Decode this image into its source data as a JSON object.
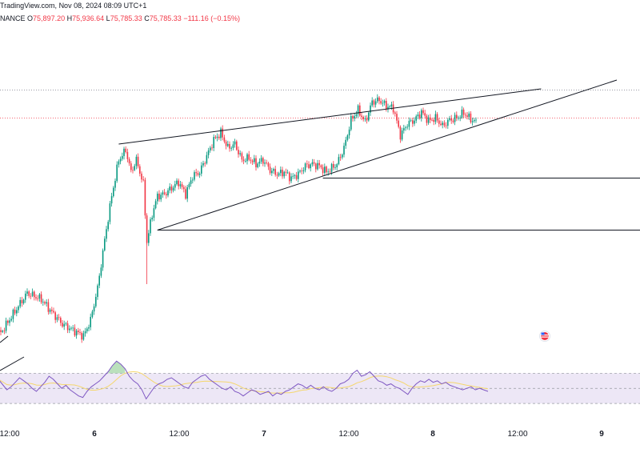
{
  "header": {
    "source": "TradingView.com,",
    "datetime": "Nov 08, 2024 08:09 UTC+1"
  },
  "ohlc": {
    "symbol": "NANCE",
    "open_label": "O",
    "open": "75,897.20",
    "high_label": "H",
    "high": "75,936.64",
    "low_label": "L",
    "low": "75,785.33",
    "close_label": "C",
    "close": "75,785.33",
    "change": "−111.16 (−0.15%)"
  },
  "colors": {
    "up": "#089981",
    "down": "#f23645",
    "line": "#131722",
    "rsi": "#7e57c2",
    "rsi_ma": "#f5d76e",
    "rsi_band": "#ede7f6"
  },
  "chart_data": {
    "type": "candlestick",
    "x_labels": [
      "12:00",
      "6",
      "12:00",
      "7",
      "12:00",
      "8",
      "12:00",
      "9"
    ],
    "bold_labels": [
      "6",
      "7",
      "8",
      "9"
    ],
    "price_start": 70020,
    "price_path": [
      [
        0,
        70020
      ],
      [
        5,
        69980
      ],
      [
        12,
        70450
      ],
      [
        20,
        70980
      ],
      [
        28,
        70820
      ],
      [
        34,
        70500
      ],
      [
        40,
        70200
      ],
      [
        46,
        70050
      ],
      [
        52,
        69900
      ],
      [
        56,
        70300
      ],
      [
        60,
        71100
      ],
      [
        64,
        72300
      ],
      [
        68,
        73400
      ],
      [
        72,
        74300
      ],
      [
        76,
        74550
      ],
      [
        79,
        74000
      ],
      [
        82,
        74300
      ],
      [
        86,
        73700
      ],
      [
        88,
        72250
      ],
      [
        91,
        72950
      ],
      [
        94,
        73400
      ],
      [
        98,
        73450
      ],
      [
        102,
        73600
      ],
      [
        106,
        73750
      ],
      [
        110,
        73450
      ],
      [
        114,
        73900
      ],
      [
        118,
        74000
      ],
      [
        122,
        74400
      ],
      [
        126,
        74800
      ],
      [
        130,
        74980
      ],
      [
        134,
        74600
      ],
      [
        138,
        74700
      ],
      [
        142,
        74300
      ],
      [
        146,
        74350
      ],
      [
        150,
        74200
      ],
      [
        154,
        74300
      ],
      [
        158,
        74050
      ],
      [
        162,
        73950
      ],
      [
        166,
        74000
      ],
      [
        170,
        73850
      ],
      [
        174,
        73950
      ],
      [
        178,
        74150
      ],
      [
        182,
        74200
      ],
      [
        186,
        74150
      ],
      [
        190,
        74000
      ],
      [
        196,
        74200
      ],
      [
        200,
        74600
      ],
      [
        204,
        75300
      ],
      [
        208,
        75550
      ],
      [
        212,
        75250
      ],
      [
        216,
        75750
      ],
      [
        220,
        75800
      ],
      [
        224,
        75650
      ],
      [
        228,
        75600
      ],
      [
        232,
        74920
      ],
      [
        236,
        75200
      ],
      [
        240,
        75300
      ],
      [
        244,
        75500
      ],
      [
        248,
        75280
      ],
      [
        252,
        75350
      ],
      [
        256,
        75150
      ],
      [
        260,
        75300
      ],
      [
        264,
        75350
      ],
      [
        268,
        75480
      ],
      [
        272,
        75320
      ],
      [
        275,
        75250
      ]
    ],
    "rsi_range": [
      0,
      100
    ],
    "rsi_levels": [
      70,
      50,
      30
    ],
    "rsi_values": [
      62,
      55,
      48,
      52,
      58,
      64,
      60,
      56,
      50,
      46,
      52,
      58,
      66,
      62,
      56,
      50,
      54,
      48,
      44,
      40,
      38,
      46,
      52,
      56,
      60,
      66,
      72,
      80,
      86,
      82,
      76,
      66,
      60,
      56,
      48,
      36,
      44,
      52,
      56,
      58,
      62,
      64,
      60,
      56,
      52,
      50,
      58,
      62,
      66,
      68,
      62,
      58,
      54,
      50,
      48,
      52,
      46,
      44,
      40,
      44,
      48,
      46,
      42,
      44,
      46,
      40,
      44,
      42,
      46,
      48,
      52,
      56,
      54,
      50,
      54,
      50,
      48,
      52,
      48,
      46,
      50,
      56,
      58,
      62,
      70,
      74,
      66,
      68,
      72,
      66,
      60,
      58,
      54,
      56,
      52,
      50,
      46,
      42,
      50,
      56,
      60,
      58,
      62,
      58,
      60,
      56,
      58,
      54,
      52,
      50,
      48,
      50,
      52,
      48,
      50,
      48,
      46
    ],
    "drawings": {
      "channel_upper": {
        "from": [
          72,
          74700
        ],
        "to": [
          312,
          76080
        ]
      },
      "channel_lower": {
        "from": [
          94,
          72550
        ],
        "to": [
          355,
          76300
        ]
      },
      "horizontal_lines": [
        {
          "from_bar": 188,
          "price": 73850
        },
        {
          "from_bar": 94,
          "price": 72550
        }
      ],
      "dotted_levels": [
        76050,
        75350
      ]
    }
  }
}
